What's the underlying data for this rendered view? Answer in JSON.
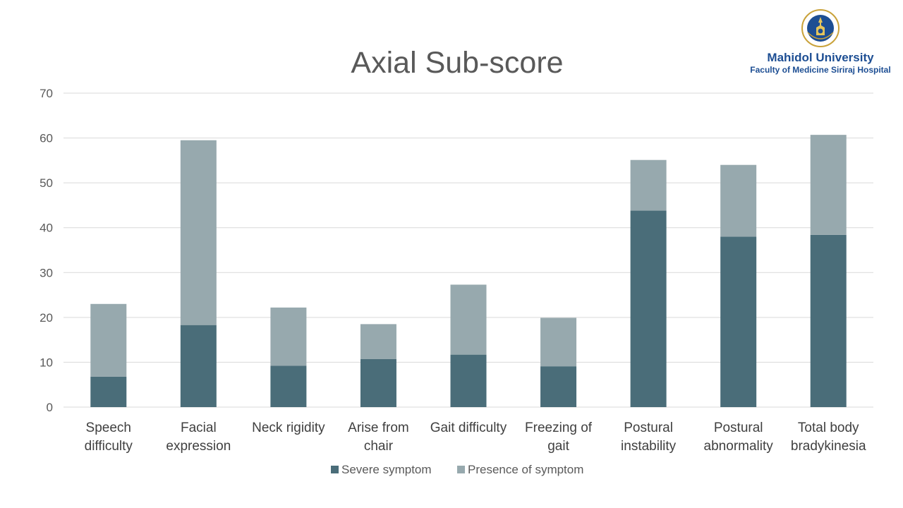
{
  "logo": {
    "university": "Mahidol University",
    "faculty": "Faculty of Medicine Siriraj Hospital",
    "seal_lettering": "มหาวิทยาลัยมหิดล",
    "colors": {
      "blue": "#1d4e93",
      "gold": "#c9a23a"
    }
  },
  "chart_data": {
    "type": "bar",
    "stacked": true,
    "title": "Axial Sub-score",
    "xlabel": "",
    "ylabel": "",
    "ylim": [
      0,
      70
    ],
    "yticks": [
      0,
      10,
      20,
      30,
      40,
      50,
      60,
      70
    ],
    "grid": true,
    "legend": "bottom",
    "categories": [
      [
        "Speech",
        "difficulty"
      ],
      [
        "Facial",
        "expression"
      ],
      [
        "Neck rigidity"
      ],
      [
        "Arise from",
        "chair"
      ],
      [
        "Gait difficulty"
      ],
      [
        "Freezing of",
        "gait"
      ],
      [
        "Postural",
        "instability"
      ],
      [
        "Postural",
        "abnormality"
      ],
      [
        "Total body",
        "bradykinesia"
      ]
    ],
    "series": [
      {
        "name": "Severe symptom",
        "color": "#4a6d79",
        "values": [
          6.8,
          18.3,
          9.2,
          10.7,
          11.7,
          9.1,
          43.8,
          38.0,
          38.4
        ]
      },
      {
        "name": "Presence of symptom",
        "color": "#97a9ae",
        "values": [
          16.2,
          41.2,
          13.0,
          7.8,
          15.6,
          10.8,
          11.3,
          16.0,
          22.3
        ]
      }
    ],
    "colors": {
      "title": "#595959",
      "tick": "#595959",
      "category": "#404040",
      "grid": "#d9d9d9"
    }
  }
}
